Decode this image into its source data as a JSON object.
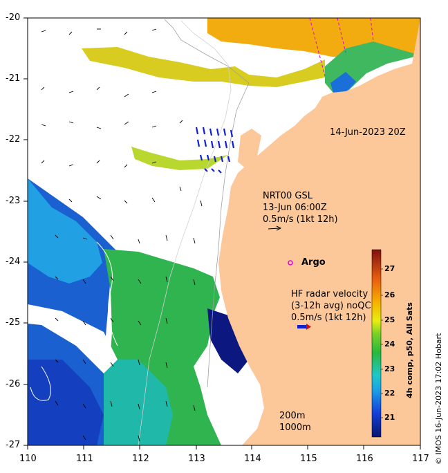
{
  "map": {
    "timestamp": "14-Jun-2023 20Z",
    "gsl": {
      "line1": "NRT00 GSL",
      "line2": "13-Jun 06:00Z",
      "line3": "0.5m/s (1kt 12h)"
    },
    "argo": {
      "label": "Argo",
      "marker_color": "#e000e0"
    },
    "radar": {
      "line1": "HF radar velocity",
      "line2": "(3-12h avg) noQC",
      "line3": "0.5m/s (1kt 12h)"
    },
    "isobaths": {
      "line1": "200m",
      "line2": "1000m"
    },
    "credit": "© IMOS 16-Jun-2023 17:02 Hobart",
    "land_color": "#fcc89a",
    "x_axis": {
      "ticks": [
        "110",
        "111",
        "112",
        "113",
        "114",
        "115",
        "116",
        "117"
      ],
      "range": [
        110,
        117
      ]
    },
    "y_axis": {
      "ticks": [
        "-20",
        "-21",
        "-22",
        "-23",
        "-24",
        "-25",
        "-26",
        "-27"
      ],
      "range": [
        -27,
        -20
      ]
    },
    "colorbar": {
      "label": "4h comp, p50, All Sats",
      "ticks": [
        "21",
        "22",
        "23",
        "24",
        "25",
        "26",
        "27"
      ],
      "range": [
        20.3,
        27.8
      ]
    }
  }
}
